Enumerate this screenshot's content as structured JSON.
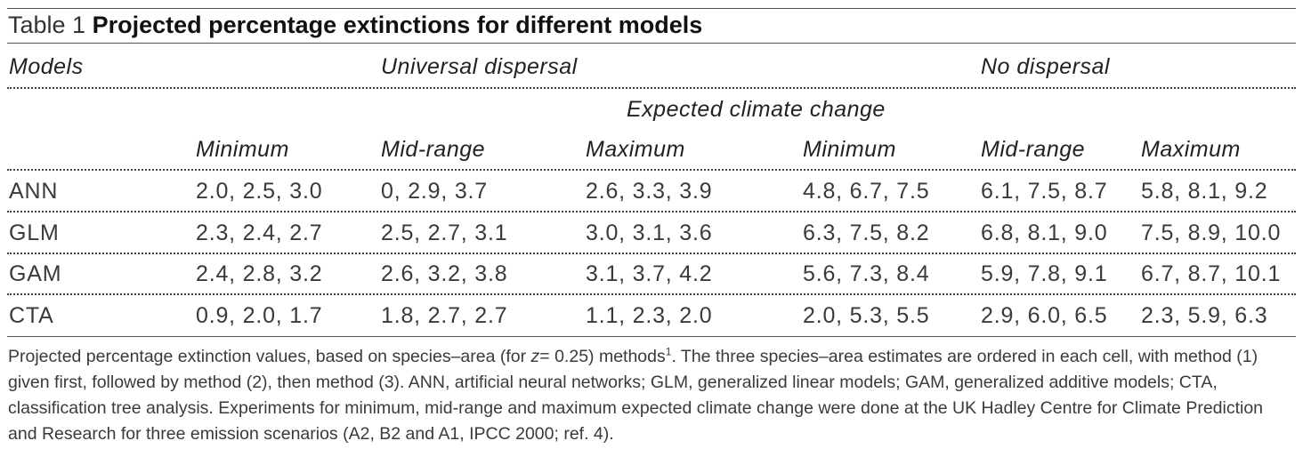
{
  "table": {
    "label": "Table 1",
    "title": "Projected percentage extinctions for different models",
    "headers": {
      "models": "Models",
      "universal": "Universal dispersal",
      "no_dispersal": "No dispersal",
      "expected": "Expected climate change",
      "cols": [
        "Minimum",
        "Mid-range",
        "Maximum",
        "Minimum",
        "Mid-range",
        "Maximum"
      ]
    },
    "rows": [
      {
        "model": "ANN",
        "cells": [
          "2.0, 2.5, 3.0",
          "0, 2.9, 3.7",
          "2.6, 3.3, 3.9",
          "4.8, 6.7, 7.5",
          "6.1, 7.5, 8.7",
          "5.8, 8.1, 9.2"
        ]
      },
      {
        "model": "GLM",
        "cells": [
          "2.3, 2.4, 2.7",
          "2.5, 2.7, 3.1",
          "3.0, 3.1, 3.6",
          "6.3, 7.5, 8.2",
          "6.8, 8.1, 9.0",
          "7.5, 8.9, 10.0"
        ]
      },
      {
        "model": "GAM",
        "cells": [
          "2.4, 2.8, 3.2",
          "2.6, 3.2, 3.8",
          "3.1, 3.7, 4.2",
          "5.6, 7.3, 8.4",
          "5.9, 7.8, 9.1",
          "6.7, 8.7, 10.1"
        ]
      },
      {
        "model": "CTA",
        "cells": [
          "0.9, 2.0, 1.7",
          "1.8, 2.7, 2.7",
          "1.1, 2.3, 2.0",
          "2.0, 5.3, 5.5",
          "2.9, 6.0, 6.5",
          "2.3, 5.9, 6.3"
        ]
      }
    ]
  },
  "footnote": {
    "part1": "Projected percentage extinction values, based on species–area (for ",
    "z_var": "z",
    "z_eq": "= 0.25) methods",
    "ref_sup": "1",
    "part2": ". The three species–area estimates are ordered in each cell, with method (1) given first, followed by method (2), then method (3). ANN, artificial neural networks; GLM, generalized linear models; GAM, generalized additive models; CTA, classification tree analysis. Experiments for minimum, mid-range and maximum expected climate change were done at the UK Hadley Centre for Climate Prediction and Research for three emission scenarios (A2, B2 and A1, IPCC 2000; ref. 4)."
  }
}
